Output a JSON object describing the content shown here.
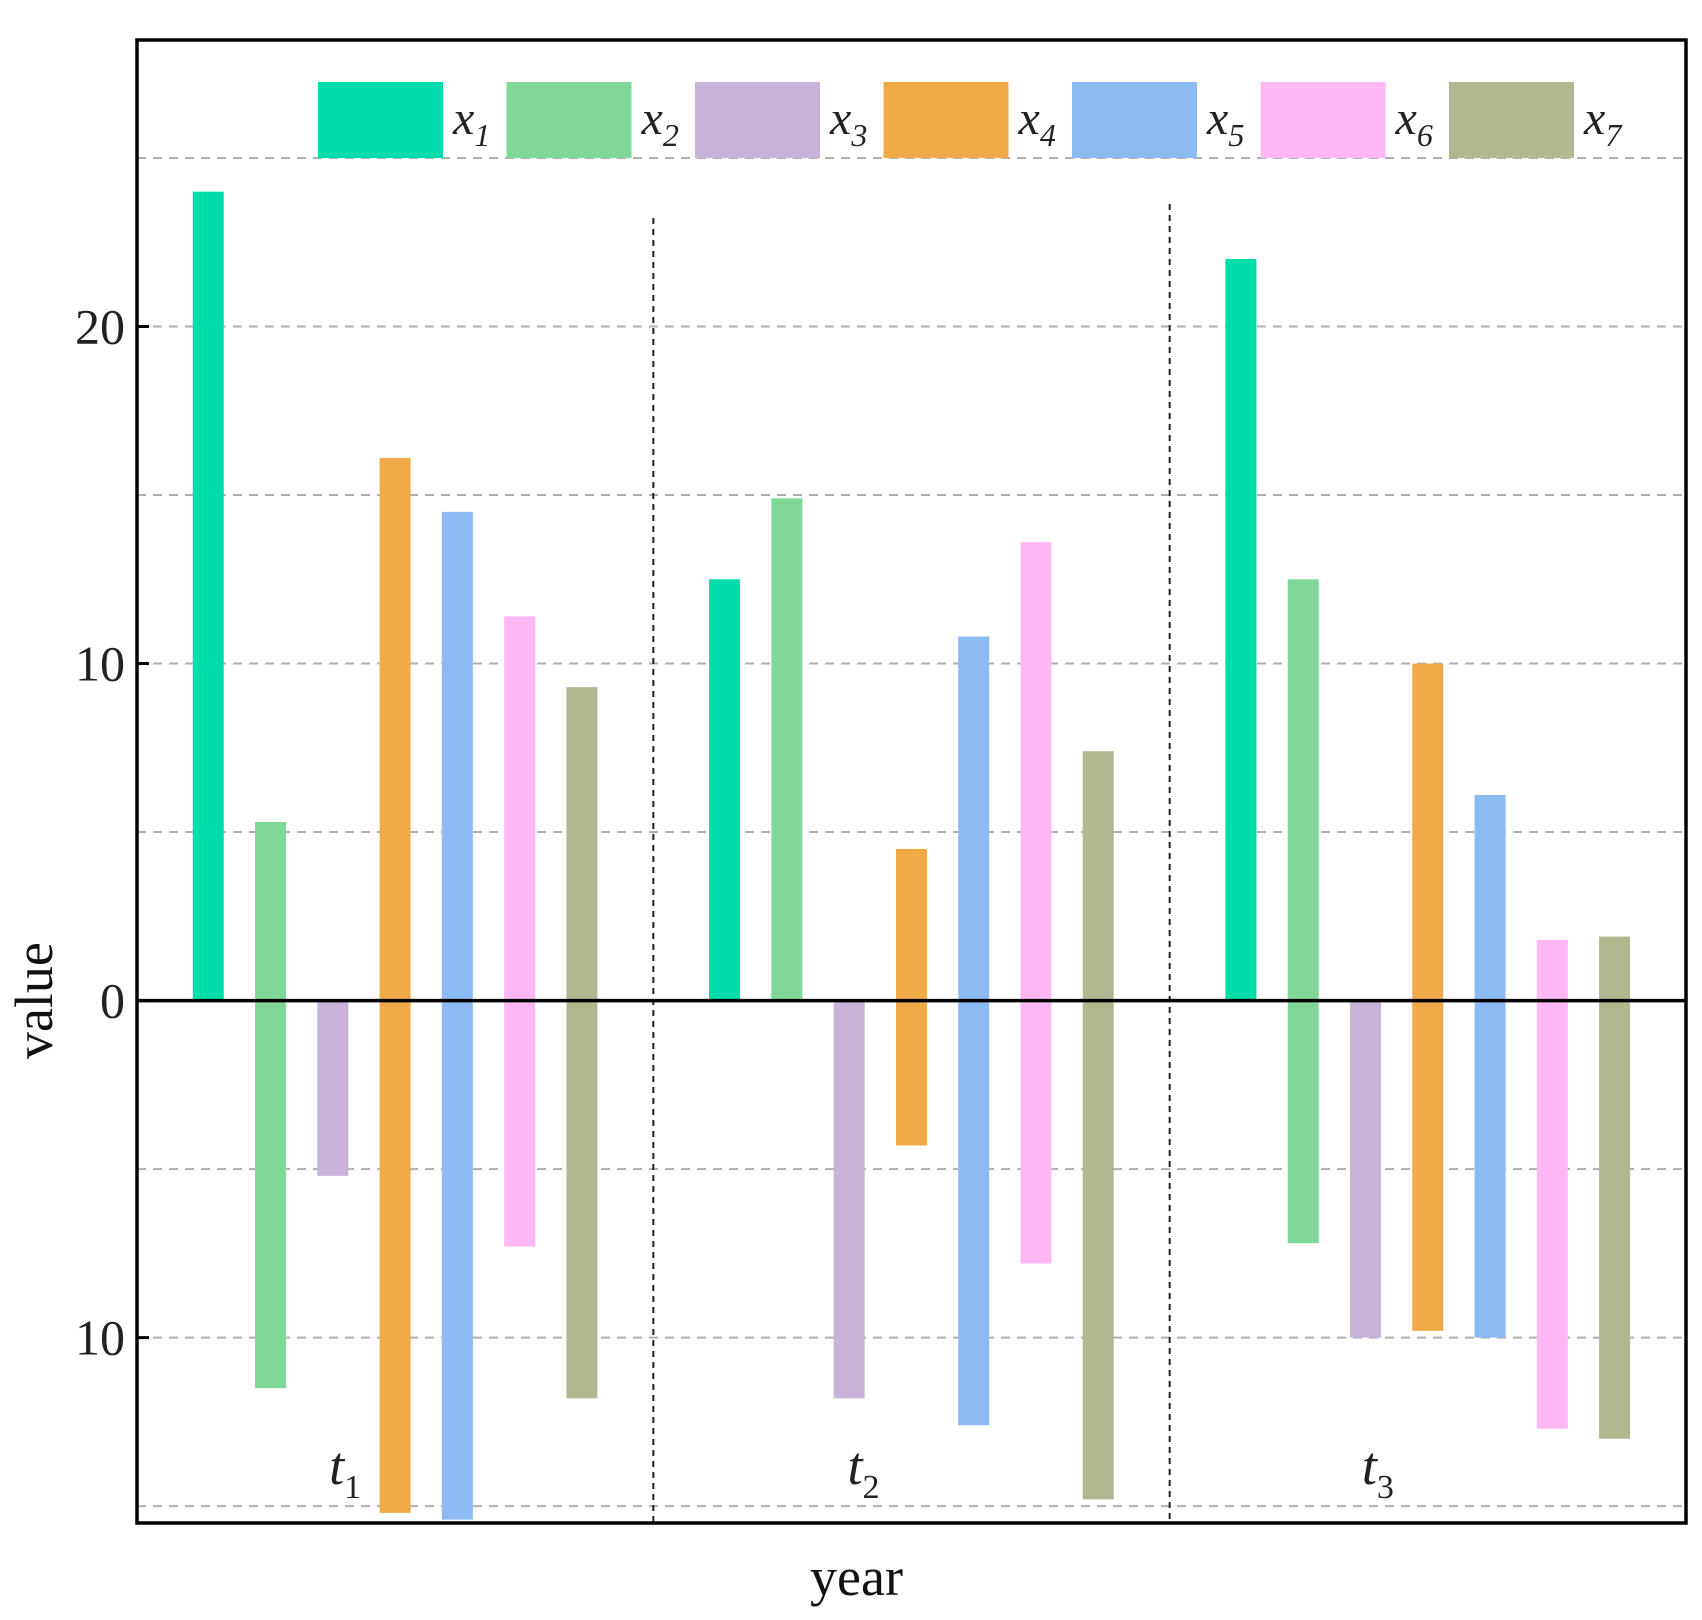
{
  "chart_data": {
    "type": "bar",
    "xlabel": "year",
    "ylabel": "value",
    "ylim": [
      -15.5,
      28.5
    ],
    "yticks": [
      {
        "value": 20,
        "label": "20"
      },
      {
        "value": 10,
        "label": "10"
      },
      {
        "value": 0,
        "label": "0"
      },
      {
        "value": -10,
        "label": "10"
      }
    ],
    "grid_lines": [
      25,
      20,
      15,
      10,
      5,
      -5,
      -10,
      -15
    ],
    "groups": [
      {
        "main": "t",
        "sub": "1"
      },
      {
        "main": "t",
        "sub": "2"
      },
      {
        "main": "t",
        "sub": "3"
      }
    ],
    "series": [
      {
        "name": "x1",
        "main": "x",
        "sub": "1",
        "color": "#00DDAA",
        "bars": [
          [
            0,
            24
          ],
          [
            0,
            12.5
          ],
          [
            0,
            22
          ]
        ]
      },
      {
        "name": "x2",
        "main": "x",
        "sub": "2",
        "color": "#80D898",
        "bars": [
          [
            -11.5,
            5.3
          ],
          [
            0,
            14.9
          ],
          [
            -7.2,
            12.5
          ]
        ]
      },
      {
        "name": "x3",
        "main": "x",
        "sub": "3",
        "color": "#C8B2D8",
        "bars": [
          [
            -5.2,
            0
          ],
          [
            -11.8,
            0
          ],
          [
            -10,
            0
          ]
        ]
      },
      {
        "name": "x4",
        "main": "x",
        "sub": "4",
        "color": "#F0AA48",
        "bars": [
          [
            -15.2,
            16.1
          ],
          [
            -4.3,
            4.5
          ],
          [
            -9.8,
            10
          ]
        ]
      },
      {
        "name": "x5",
        "main": "x",
        "sub": "5",
        "color": "#8CBAF2",
        "bars": [
          [
            -15.4,
            14.5
          ],
          [
            -12.6,
            10.8
          ],
          [
            -10,
            6.1
          ]
        ]
      },
      {
        "name": "x6",
        "main": "x",
        "sub": "6",
        "color": "#FFB8F4",
        "bars": [
          [
            -7.3,
            11.4
          ],
          [
            -7.8,
            13.6
          ],
          [
            -12.7,
            1.8
          ]
        ]
      },
      {
        "name": "x7",
        "main": "x",
        "sub": "7",
        "color": "#B0B890",
        "bars": [
          [
            -11.8,
            9.3
          ],
          [
            -14.8,
            7.4
          ],
          [
            -13,
            1.9
          ]
        ]
      }
    ]
  }
}
